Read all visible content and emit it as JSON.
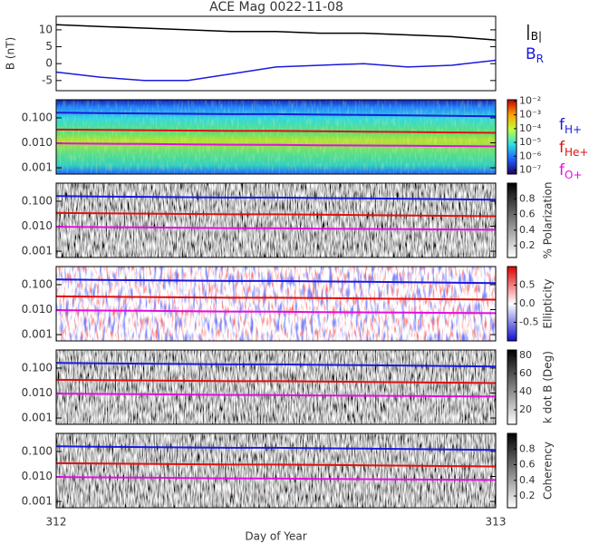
{
  "chart_data": [
    {
      "type": "line",
      "title": "ACE Mag 0022-11-08",
      "ylabel": "B (nT)",
      "x": [
        312,
        312.1,
        312.2,
        312.3,
        312.4,
        312.5,
        312.6,
        312.7,
        312.8,
        312.9,
        313
      ],
      "xlim": [
        312,
        313
      ],
      "ylim": [
        -8,
        14
      ],
      "yticks": [
        -5,
        0,
        5,
        10
      ],
      "series": [
        {
          "name": "|B|",
          "color": "#000000",
          "values": [
            11.5,
            11,
            10.5,
            10,
            9.5,
            9.5,
            9,
            9,
            8.5,
            8,
            7
          ]
        },
        {
          "name": "BR",
          "color": "#1a1adc",
          "values": [
            -2.5,
            -4,
            -5,
            -5,
            -3,
            -1,
            -0.5,
            0,
            -1,
            -0.5,
            1
          ]
        }
      ]
    },
    {
      "type": "spectrogram",
      "colormap": "jet",
      "log_scale": true,
      "x": [
        312,
        312.1,
        312.2,
        312.3,
        312.4,
        312.5,
        312.6,
        312.7,
        312.8,
        312.9,
        313
      ],
      "xlim": [
        312,
        313
      ],
      "ylim": [
        0.00056,
        0.53
      ],
      "yticks": [
        {
          "value": 0.1,
          "label": "0.100"
        },
        {
          "value": 0.01,
          "label": "0.010"
        },
        {
          "value": 0.001,
          "label": "0.001"
        }
      ],
      "colorbar": {
        "lim": [
          -7.3,
          -1.9
        ],
        "ticks": [
          {
            "value": -2,
            "label": "10⁻²"
          },
          {
            "value": -3,
            "label": "10⁻³"
          },
          {
            "value": -4,
            "label": "10⁻⁴"
          },
          {
            "value": -5,
            "label": "10⁻⁵"
          },
          {
            "value": -6,
            "label": "10⁻⁶"
          },
          {
            "value": -7,
            "label": "10⁻⁷"
          }
        ]
      },
      "series": [
        {
          "name": "fH+",
          "color": "#1a1adc",
          "values": [
            0.16,
            0.155,
            0.15,
            0.145,
            0.14,
            0.14,
            0.135,
            0.13,
            0.125,
            0.12,
            0.115
          ]
        },
        {
          "name": "fHe+",
          "color": "#e01010",
          "values": [
            0.034,
            0.033,
            0.032,
            0.031,
            0.03,
            0.03,
            0.029,
            0.028,
            0.027,
            0.026,
            0.025
          ]
        },
        {
          "name": "fO+",
          "color": "#e010e0",
          "values": [
            0.0095,
            0.0092,
            0.009,
            0.0087,
            0.0084,
            0.0083,
            0.008,
            0.0078,
            0.0076,
            0.0074,
            0.0072
          ]
        }
      ]
    },
    {
      "type": "spectrogram",
      "colormap": "gray",
      "log_scale": true,
      "x": [
        312,
        312.1,
        312.2,
        312.3,
        312.4,
        312.5,
        312.6,
        312.7,
        312.8,
        312.9,
        313
      ],
      "xlim": [
        312,
        313
      ],
      "ylim": [
        0.00056,
        0.53
      ],
      "yticks": [
        {
          "value": 0.1,
          "label": "0.100"
        },
        {
          "value": 0.01,
          "label": "0.010"
        },
        {
          "value": 0.001,
          "label": "0.001"
        }
      ],
      "colorbar": {
        "label": "% Polarization",
        "lim": [
          0.05,
          1.0
        ],
        "ticks": [
          0.2,
          0.4,
          0.6,
          0.8
        ]
      },
      "series": [
        {
          "color": "#1a1adc",
          "values": [
            0.16,
            0.155,
            0.15,
            0.145,
            0.14,
            0.14,
            0.135,
            0.13,
            0.125,
            0.12,
            0.115
          ]
        },
        {
          "color": "#e01010",
          "values": [
            0.034,
            0.033,
            0.032,
            0.031,
            0.03,
            0.03,
            0.029,
            0.028,
            0.027,
            0.026,
            0.025
          ]
        },
        {
          "color": "#e010e0",
          "values": [
            0.0095,
            0.0092,
            0.009,
            0.0087,
            0.0084,
            0.0083,
            0.008,
            0.0078,
            0.0076,
            0.0074,
            0.0072
          ]
        }
      ]
    },
    {
      "type": "spectrogram",
      "colormap": "bwr",
      "log_scale": true,
      "x": [
        312,
        312.1,
        312.2,
        312.3,
        312.4,
        312.5,
        312.6,
        312.7,
        312.8,
        312.9,
        313
      ],
      "xlim": [
        312,
        313
      ],
      "ylim": [
        0.00056,
        0.53
      ],
      "yticks": [
        {
          "value": 0.1,
          "label": "0.100"
        },
        {
          "value": 0.01,
          "label": "0.010"
        },
        {
          "value": 0.001,
          "label": "0.001"
        }
      ],
      "colorbar": {
        "label": "Ellipticity",
        "lim": [
          -1,
          1
        ],
        "ticks": [
          0.5,
          {
            "value": 0,
            "label": "0.0"
          },
          -0.5
        ]
      },
      "series": [
        {
          "color": "#1a1adc",
          "values": [
            0.16,
            0.155,
            0.15,
            0.145,
            0.14,
            0.14,
            0.135,
            0.13,
            0.125,
            0.12,
            0.115
          ]
        },
        {
          "color": "#e01010",
          "values": [
            0.034,
            0.033,
            0.032,
            0.031,
            0.03,
            0.03,
            0.029,
            0.028,
            0.027,
            0.026,
            0.025
          ]
        },
        {
          "color": "#e010e0",
          "values": [
            0.0095,
            0.0092,
            0.009,
            0.0087,
            0.0084,
            0.0083,
            0.008,
            0.0078,
            0.0076,
            0.0074,
            0.0072
          ]
        }
      ]
    },
    {
      "type": "spectrogram",
      "colormap": "gray",
      "log_scale": true,
      "x": [
        312,
        312.1,
        312.2,
        312.3,
        312.4,
        312.5,
        312.6,
        312.7,
        312.8,
        312.9,
        313
      ],
      "xlim": [
        312,
        313
      ],
      "ylim": [
        0.00056,
        0.53
      ],
      "yticks": [
        {
          "value": 0.1,
          "label": "0.100"
        },
        {
          "value": 0.01,
          "label": "0.010"
        },
        {
          "value": 0.001,
          "label": "0.001"
        }
      ],
      "colorbar": {
        "label": "k dot B (Deg)",
        "lim": [
          4,
          86
        ],
        "ticks": [
          20,
          40,
          60,
          80
        ]
      },
      "series": [
        {
          "color": "#1a1adc",
          "values": [
            0.16,
            0.155,
            0.15,
            0.145,
            0.14,
            0.14,
            0.135,
            0.13,
            0.125,
            0.12,
            0.115
          ]
        },
        {
          "color": "#e01010",
          "values": [
            0.034,
            0.033,
            0.032,
            0.031,
            0.03,
            0.03,
            0.029,
            0.028,
            0.027,
            0.026,
            0.025
          ]
        },
        {
          "color": "#e010e0",
          "values": [
            0.0095,
            0.0092,
            0.009,
            0.0087,
            0.0084,
            0.0083,
            0.008,
            0.0078,
            0.0076,
            0.0074,
            0.0072
          ]
        }
      ]
    },
    {
      "type": "spectrogram",
      "colormap": "gray",
      "log_scale": true,
      "x": [
        312,
        312.1,
        312.2,
        312.3,
        312.4,
        312.5,
        312.6,
        312.7,
        312.8,
        312.9,
        313
      ],
      "xlim": [
        312,
        313
      ],
      "ylim": [
        0.00056,
        0.53
      ],
      "xticks": [
        312,
        313
      ],
      "xlabel": "Day of Year",
      "yticks": [
        {
          "value": 0.1,
          "label": "0.100"
        },
        {
          "value": 0.01,
          "label": "0.010"
        },
        {
          "value": 0.001,
          "label": "0.001"
        }
      ],
      "colorbar": {
        "label": "Coherency",
        "lim": [
          0.05,
          1.0
        ],
        "ticks": [
          0.2,
          0.4,
          0.6,
          0.8
        ]
      },
      "series": [
        {
          "color": "#1a1adc",
          "values": [
            0.16,
            0.155,
            0.15,
            0.145,
            0.14,
            0.14,
            0.135,
            0.13,
            0.125,
            0.12,
            0.115
          ]
        },
        {
          "color": "#e01010",
          "values": [
            0.034,
            0.033,
            0.032,
            0.031,
            0.03,
            0.03,
            0.029,
            0.028,
            0.027,
            0.026,
            0.025
          ]
        },
        {
          "color": "#e010e0",
          "values": [
            0.0095,
            0.0092,
            0.009,
            0.0087,
            0.0084,
            0.0083,
            0.008,
            0.0078,
            0.0076,
            0.0074,
            0.0072
          ]
        }
      ]
    }
  ]
}
